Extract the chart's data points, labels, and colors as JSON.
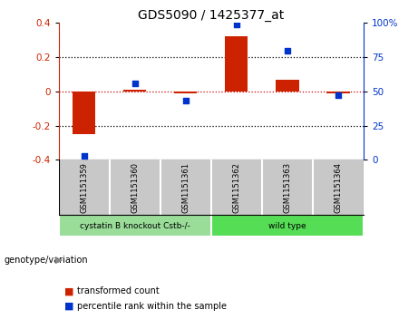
{
  "title": "GDS5090 / 1425377_at",
  "samples": [
    "GSM1151359",
    "GSM1151360",
    "GSM1151361",
    "GSM1151362",
    "GSM1151363",
    "GSM1151364"
  ],
  "red_values": [
    -0.25,
    0.01,
    -0.01,
    0.32,
    0.07,
    -0.01
  ],
  "blue_values_pct": [
    3,
    56,
    43,
    99,
    80,
    47
  ],
  "ylim_left": [
    -0.4,
    0.4
  ],
  "ylim_right": [
    0,
    100
  ],
  "yticks_left": [
    -0.4,
    -0.2,
    0.0,
    0.2,
    0.4
  ],
  "yticks_right": [
    0,
    25,
    50,
    75,
    100
  ],
  "ytick_labels_left": [
    "-0.4",
    "-0.2",
    "0",
    "0.2",
    "0.4"
  ],
  "ytick_labels_right": [
    "0",
    "25",
    "50",
    "75",
    "100%"
  ],
  "red_color": "#cc2200",
  "blue_color": "#0033cc",
  "red_dotted_color": "#cc0000",
  "group1_label": "cystatin B knockout Cstb-/-",
  "group2_label": "wild type",
  "group1_color": "#99dd99",
  "group2_color": "#55dd55",
  "legend_red": "transformed count",
  "legend_blue": "percentile rank within the sample",
  "genotype_label": "genotype/variation",
  "bar_width": 0.45,
  "sample_bg": "#c8c8c8"
}
